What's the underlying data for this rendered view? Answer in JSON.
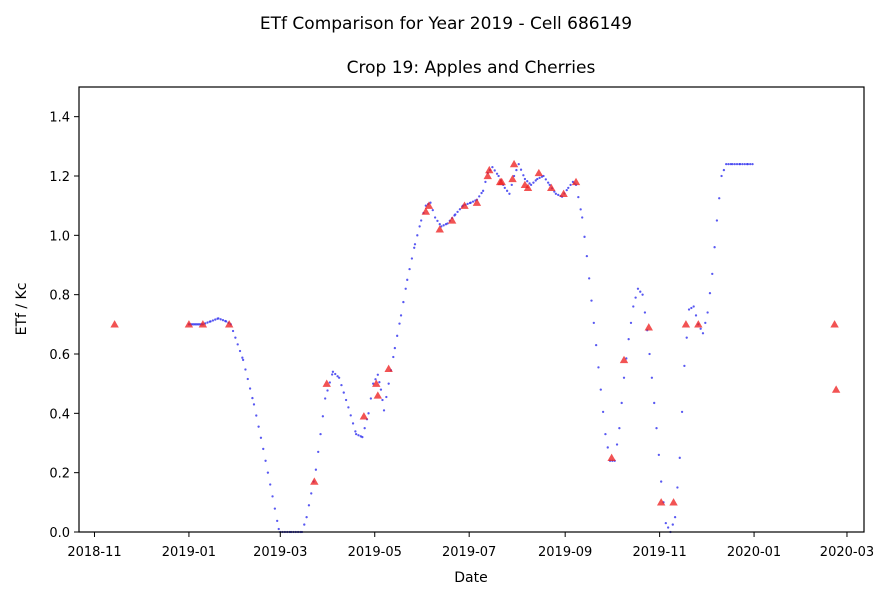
{
  "chart_data": {
    "type": "scatter",
    "suptitle": "ETf Comparison for Year 2019 - Cell 686149",
    "title": "Crop 19: Apples and Cherries",
    "xlabel": "Date",
    "ylabel": "ETf / Kc",
    "x_axis": "date",
    "xlim": [
      "2018-10-22",
      "2020-03-12"
    ],
    "ylim": [
      0,
      1.5
    ],
    "grid": false,
    "legend": "none",
    "x_ticks": [
      "2018-11",
      "2019-01",
      "2019-03",
      "2019-05",
      "2019-07",
      "2019-09",
      "2019-11",
      "2020-01",
      "2020-03"
    ],
    "y_ticks": [
      "0.0",
      "0.2",
      "0.4",
      "0.6",
      "0.8",
      "1.0",
      "1.2",
      "1.4"
    ],
    "colors": {
      "curve": "#3b3bf0",
      "observed": "#ee2222"
    },
    "series": [
      {
        "marker": "dot",
        "color": "#3b3bf0",
        "points": [
          [
            "2019-01-01",
            0.7
          ],
          [
            "2019-01-10",
            0.7
          ],
          [
            "2019-01-15",
            0.71
          ],
          [
            "2019-01-20",
            0.72
          ],
          [
            "2019-01-25",
            0.71
          ],
          [
            "2019-01-28",
            0.7
          ],
          [
            "2019-02-05",
            0.58
          ],
          [
            "2019-02-12",
            0.43
          ],
          [
            "2019-02-18",
            0.28
          ],
          [
            "2019-02-24",
            0.12
          ],
          [
            "2019-02-28",
            0.01
          ],
          [
            "2019-03-01",
            0.0
          ],
          [
            "2019-03-08",
            0.0
          ],
          [
            "2019-03-15",
            0.0
          ],
          [
            "2019-03-18",
            0.05
          ],
          [
            "2019-03-24",
            0.21
          ],
          [
            "2019-03-30",
            0.45
          ],
          [
            "2019-04-04",
            0.54
          ],
          [
            "2019-04-08",
            0.52
          ],
          [
            "2019-04-14",
            0.42
          ],
          [
            "2019-04-19",
            0.33
          ],
          [
            "2019-04-23",
            0.32
          ],
          [
            "2019-04-27",
            0.4
          ],
          [
            "2019-04-30",
            0.5
          ],
          [
            "2019-05-03",
            0.53
          ],
          [
            "2019-05-05",
            0.48
          ],
          [
            "2019-05-07",
            0.41
          ],
          [
            "2019-05-10",
            0.5
          ],
          [
            "2019-05-14",
            0.62
          ],
          [
            "2019-05-18",
            0.73
          ],
          [
            "2019-05-22",
            0.85
          ],
          [
            "2019-05-27",
            0.97
          ],
          [
            "2019-05-31",
            1.05
          ],
          [
            "2019-06-03",
            1.1
          ],
          [
            "2019-06-06",
            1.11
          ],
          [
            "2019-06-09",
            1.06
          ],
          [
            "2019-06-13",
            1.03
          ],
          [
            "2019-06-17",
            1.04
          ],
          [
            "2019-06-22",
            1.07
          ],
          [
            "2019-06-27",
            1.1
          ],
          [
            "2019-07-02",
            1.11
          ],
          [
            "2019-07-06",
            1.12
          ],
          [
            "2019-07-10",
            1.15
          ],
          [
            "2019-07-13",
            1.21
          ],
          [
            "2019-07-16",
            1.23
          ],
          [
            "2019-07-20",
            1.2
          ],
          [
            "2019-07-24",
            1.16
          ],
          [
            "2019-07-27",
            1.14
          ],
          [
            "2019-07-30",
            1.2
          ],
          [
            "2019-08-02",
            1.24
          ],
          [
            "2019-08-06",
            1.19
          ],
          [
            "2019-08-10",
            1.17
          ],
          [
            "2019-08-14",
            1.19
          ],
          [
            "2019-08-18",
            1.2
          ],
          [
            "2019-08-22",
            1.17
          ],
          [
            "2019-08-26",
            1.14
          ],
          [
            "2019-08-30",
            1.13
          ],
          [
            "2019-09-03",
            1.16
          ],
          [
            "2019-09-06",
            1.18
          ],
          [
            "2019-09-08",
            1.17
          ],
          [
            "2019-09-12",
            1.06
          ],
          [
            "2019-09-15",
            0.93
          ],
          [
            "2019-09-18",
            0.78
          ],
          [
            "2019-09-21",
            0.63
          ],
          [
            "2019-09-24",
            0.48
          ],
          [
            "2019-09-27",
            0.33
          ],
          [
            "2019-09-30",
            0.24
          ],
          [
            "2019-10-03",
            0.24
          ],
          [
            "2019-10-06",
            0.35
          ],
          [
            "2019-10-09",
            0.52
          ],
          [
            "2019-10-12",
            0.65
          ],
          [
            "2019-10-15",
            0.76
          ],
          [
            "2019-10-18",
            0.82
          ],
          [
            "2019-10-21",
            0.8
          ],
          [
            "2019-10-24",
            0.68
          ],
          [
            "2019-10-27",
            0.52
          ],
          [
            "2019-10-30",
            0.35
          ],
          [
            "2019-11-02",
            0.17
          ],
          [
            "2019-11-05",
            0.03
          ],
          [
            "2019-11-08",
            0.0
          ],
          [
            "2019-11-11",
            0.05
          ],
          [
            "2019-11-14",
            0.25
          ],
          [
            "2019-11-17",
            0.56
          ],
          [
            "2019-11-20",
            0.75
          ],
          [
            "2019-11-23",
            0.76
          ],
          [
            "2019-11-26",
            0.7
          ],
          [
            "2019-11-29",
            0.67
          ],
          [
            "2019-12-02",
            0.74
          ],
          [
            "2019-12-05",
            0.87
          ],
          [
            "2019-12-08",
            1.05
          ],
          [
            "2019-12-11",
            1.2
          ],
          [
            "2019-12-14",
            1.24
          ],
          [
            "2019-12-18",
            1.24
          ],
          [
            "2019-12-23",
            1.24
          ],
          [
            "2019-12-28",
            1.24
          ],
          [
            "2019-12-31",
            1.24
          ]
        ]
      },
      {
        "marker": "triangle",
        "color": "#ee2222",
        "points": [
          [
            "2018-11-14",
            0.7
          ],
          [
            "2019-01-01",
            0.7
          ],
          [
            "2019-01-10",
            0.7
          ],
          [
            "2019-01-27",
            0.7
          ],
          [
            "2019-03-23",
            0.17
          ],
          [
            "2019-03-31",
            0.5
          ],
          [
            "2019-04-24",
            0.39
          ],
          [
            "2019-05-02",
            0.5
          ],
          [
            "2019-05-03",
            0.46
          ],
          [
            "2019-05-10",
            0.55
          ],
          [
            "2019-06-03",
            1.08
          ],
          [
            "2019-06-05",
            1.1
          ],
          [
            "2019-06-12",
            1.02
          ],
          [
            "2019-06-20",
            1.05
          ],
          [
            "2019-06-28",
            1.1
          ],
          [
            "2019-07-06",
            1.11
          ],
          [
            "2019-07-13",
            1.2
          ],
          [
            "2019-07-14",
            1.22
          ],
          [
            "2019-07-21",
            1.18
          ],
          [
            "2019-07-22",
            1.18
          ],
          [
            "2019-07-29",
            1.19
          ],
          [
            "2019-07-30",
            1.24
          ],
          [
            "2019-08-06",
            1.17
          ],
          [
            "2019-08-08",
            1.16
          ],
          [
            "2019-08-15",
            1.21
          ],
          [
            "2019-08-23",
            1.16
          ],
          [
            "2019-08-31",
            1.14
          ],
          [
            "2019-09-08",
            1.18
          ],
          [
            "2019-10-01",
            0.25
          ],
          [
            "2019-10-09",
            0.58
          ],
          [
            "2019-10-25",
            0.69
          ],
          [
            "2019-11-02",
            0.1
          ],
          [
            "2019-11-10",
            0.1
          ],
          [
            "2019-11-18",
            0.7
          ],
          [
            "2019-11-26",
            0.7
          ],
          [
            "2020-02-22",
            0.7
          ],
          [
            "2020-02-23",
            0.48
          ]
        ]
      }
    ]
  }
}
